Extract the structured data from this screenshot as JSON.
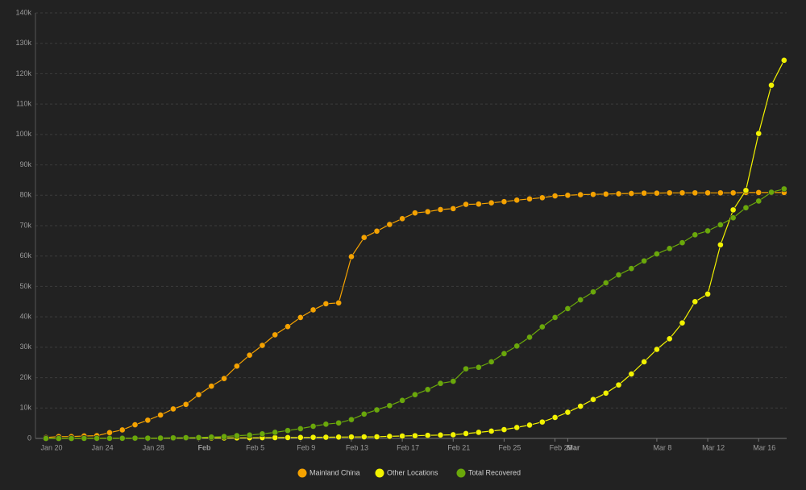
{
  "chart_data": {
    "type": "line",
    "categories": [
      "Jan 20",
      null,
      null,
      null,
      "Jan 24",
      null,
      null,
      null,
      "Jan 28",
      null,
      null,
      null,
      "Feb",
      null,
      null,
      null,
      "Feb 5",
      null,
      null,
      null,
      "Feb 9",
      null,
      null,
      null,
      "Feb 13",
      null,
      null,
      null,
      "Feb 17",
      null,
      null,
      null,
      "Feb 21",
      null,
      null,
      null,
      "Feb 25",
      null,
      null,
      null,
      "Feb 29",
      "Mar",
      null,
      null,
      null,
      null,
      null,
      null,
      "Mar 8",
      null,
      null,
      null,
      "Mar 12",
      null,
      null,
      null,
      "Mar 16",
      null,
      null
    ],
    "series": [
      {
        "name": "Mainland China",
        "color": "#f5a200",
        "values": [
          300,
          600,
          600,
          800,
          900,
          1900,
          2800,
          4500,
          6000,
          7700,
          9700,
          11200,
          14400,
          17200,
          19700,
          23800,
          27400,
          30600,
          34100,
          36800,
          39800,
          42300,
          44300,
          44600,
          59800,
          66100,
          68200,
          70400,
          72300,
          74200,
          74600,
          75300,
          75600,
          77000,
          77100,
          77500,
          77900,
          78400,
          78800,
          79200,
          79800,
          80000,
          80200,
          80300,
          80400,
          80500,
          80600,
          80700,
          80700,
          80800,
          80800,
          80800,
          80800,
          80800,
          80800,
          80900,
          80900,
          80900,
          80900
        ]
      },
      {
        "name": "Other Locations",
        "color": "#f2f200",
        "values": [
          0,
          0,
          0,
          10,
          20,
          30,
          40,
          50,
          60,
          80,
          100,
          130,
          150,
          150,
          160,
          190,
          210,
          240,
          270,
          290,
          320,
          360,
          390,
          440,
          470,
          510,
          530,
          690,
          790,
          890,
          1000,
          1100,
          1200,
          1600,
          2000,
          2400,
          2900,
          3600,
          4400,
          5400,
          6900,
          8600,
          10600,
          12800,
          14900,
          17600,
          21200,
          25200,
          29300,
          32800,
          38000,
          45000,
          47500,
          63700,
          75200,
          81600,
          100300,
          116200,
          124400
        ]
      },
      {
        "name": "Total Recovered",
        "color": "#6aa80a",
        "values": [
          0,
          0,
          0,
          30,
          40,
          50,
          60,
          100,
          100,
          130,
          200,
          250,
          300,
          450,
          600,
          900,
          1100,
          1500,
          2000,
          2600,
          3200,
          4000,
          4700,
          5100,
          6200,
          8000,
          9400,
          10800,
          12500,
          14400,
          16100,
          18100,
          18800,
          22900,
          23400,
          25200,
          27900,
          30400,
          33300,
          36700,
          39800,
          42700,
          45600,
          48200,
          51200,
          53800,
          55900,
          58400,
          60700,
          62500,
          64400,
          67000,
          68300,
          70300,
          72600,
          75900,
          78100,
          81000,
          82100
        ]
      }
    ],
    "ylim": [
      0,
      140000
    ],
    "yticks": [
      0,
      {
        "value": 10000,
        "label": "10k"
      },
      {
        "value": 20000,
        "label": "20k"
      },
      {
        "value": 30000,
        "label": "30k"
      },
      {
        "value": 40000,
        "label": "40k"
      },
      {
        "value": 50000,
        "label": "50k"
      },
      {
        "value": 60000,
        "label": "60k"
      },
      {
        "value": 70000,
        "label": "70k"
      },
      {
        "value": 80000,
        "label": "80k"
      },
      {
        "value": 90000,
        "label": "90k"
      },
      {
        "value": 100000,
        "label": "100k"
      },
      {
        "value": 110000,
        "label": "110k"
      },
      {
        "value": 120000,
        "label": "120k"
      },
      {
        "value": 130000,
        "label": "130k"
      },
      {
        "value": 140000,
        "label": "140k"
      }
    ],
    "grid": true,
    "legend": "bottom"
  }
}
